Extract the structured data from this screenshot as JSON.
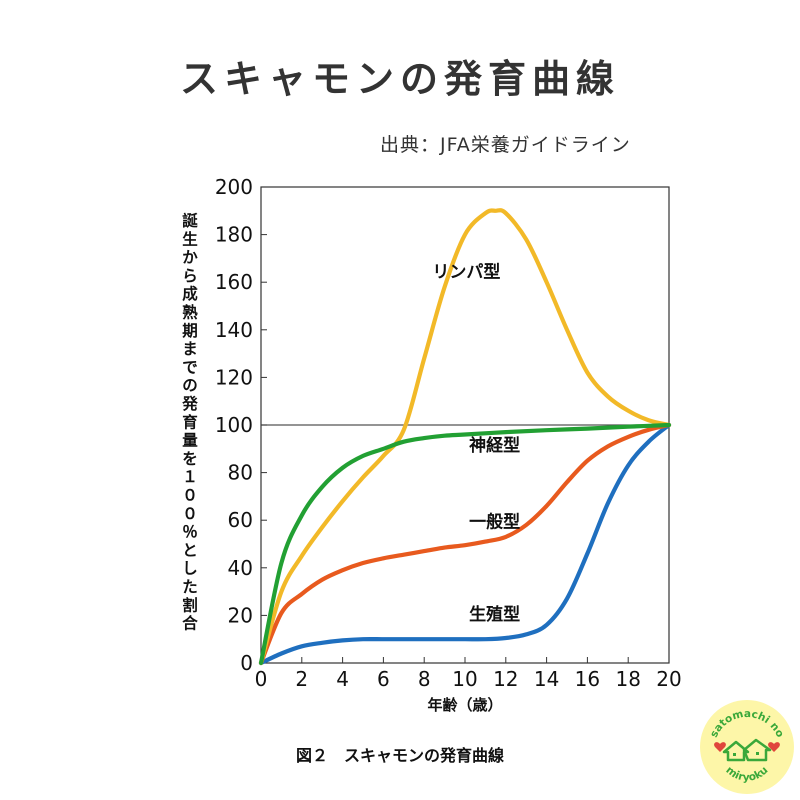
{
  "page": {
    "title": "スキャモンの発育曲線",
    "source": "出典：JFA栄養ガイドライン",
    "caption": "図２　スキャモンの発育曲線"
  },
  "logo": {
    "top_text": "satomachi no",
    "bottom_text": "miryoku",
    "colors": {
      "background": "#fdf6a8",
      "green": "#3aa83a",
      "red": "#e0463c"
    }
  },
  "chart_data": {
    "type": "line",
    "title": "",
    "xlabel": "年齢（歳）",
    "ylabel": "誕生から成熟期までの発育量を１００％とした割合",
    "xlim": [
      0,
      20
    ],
    "ylim": [
      0,
      200
    ],
    "xticks": [
      0,
      2,
      4,
      6,
      8,
      10,
      12,
      14,
      16,
      18,
      20
    ],
    "yticks": [
      0,
      20,
      40,
      60,
      80,
      100,
      120,
      140,
      160,
      180,
      200
    ],
    "reference_line": 100,
    "grid": false,
    "series": [
      {
        "name": "リンパ型",
        "color": "#f2b928",
        "x": [
          0,
          1,
          2,
          3,
          4,
          5,
          6,
          7,
          8,
          9,
          10,
          11,
          11.5,
          12,
          13,
          14,
          15,
          16,
          17,
          18,
          19,
          20
        ],
        "y": [
          0,
          30,
          45,
          57,
          68,
          78,
          87,
          98,
          128,
          158,
          180,
          189,
          190,
          189,
          178,
          160,
          140,
          122,
          112,
          106,
          102,
          100
        ]
      },
      {
        "name": "神経型",
        "color": "#22a033",
        "x": [
          0,
          1,
          2,
          3,
          4,
          5,
          6,
          7,
          8,
          9,
          10,
          12,
          14,
          16,
          18,
          20
        ],
        "y": [
          0,
          42,
          62,
          74,
          82,
          87,
          90,
          93,
          94.5,
          95.5,
          96,
          97,
          97.8,
          98.5,
          99.3,
          100
        ]
      },
      {
        "name": "一般型",
        "color": "#e85a1e",
        "x": [
          0,
          1,
          2,
          3,
          4,
          5,
          6,
          7,
          8,
          9,
          10,
          11,
          12,
          13,
          14,
          15,
          16,
          17,
          18,
          19,
          20
        ],
        "y": [
          0,
          21,
          29,
          35,
          39,
          42,
          44,
          45.5,
          47,
          48.5,
          49.5,
          51,
          53,
          58,
          66,
          76,
          85,
          91,
          95,
          98,
          100
        ]
      },
      {
        "name": "生殖型",
        "color": "#1f6fbf",
        "x": [
          0,
          1,
          2,
          3,
          4,
          5,
          6,
          7,
          8,
          9,
          10,
          11,
          12,
          13,
          14,
          15,
          16,
          17,
          18,
          19,
          20
        ],
        "y": [
          0,
          4,
          7,
          8.5,
          9.5,
          10,
          10,
          10,
          10,
          10,
          10,
          10,
          10.5,
          12,
          16,
          27,
          46,
          67,
          83,
          93,
          100
        ]
      }
    ],
    "labels": [
      {
        "text": "リンパ型",
        "x": 8.4,
        "y": 162
      },
      {
        "text": "神経型",
        "x": 10.2,
        "y": 89
      },
      {
        "text": "一般型",
        "x": 10.2,
        "y": 57
      },
      {
        "text": "生殖型",
        "x": 10.2,
        "y": 18
      }
    ]
  }
}
